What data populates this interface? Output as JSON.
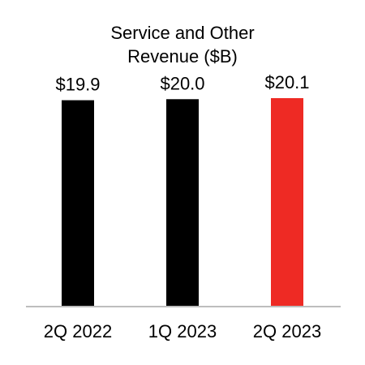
{
  "chart_data": {
    "type": "bar",
    "title_lines": [
      "Service and Other",
      "Revenue ($B)"
    ],
    "categories": [
      "2Q 2022",
      "1Q 2023",
      "2Q 2023"
    ],
    "values": [
      19.9,
      20.0,
      20.1
    ],
    "value_labels": [
      "$19.9",
      "$20.0",
      "$20.1"
    ],
    "bar_colors": [
      "#000000",
      "#000000",
      "#ee2a24"
    ],
    "axis_color": "#bdbdbd",
    "ylim": [
      0,
      20.1
    ],
    "grid": false,
    "legend": "none"
  }
}
